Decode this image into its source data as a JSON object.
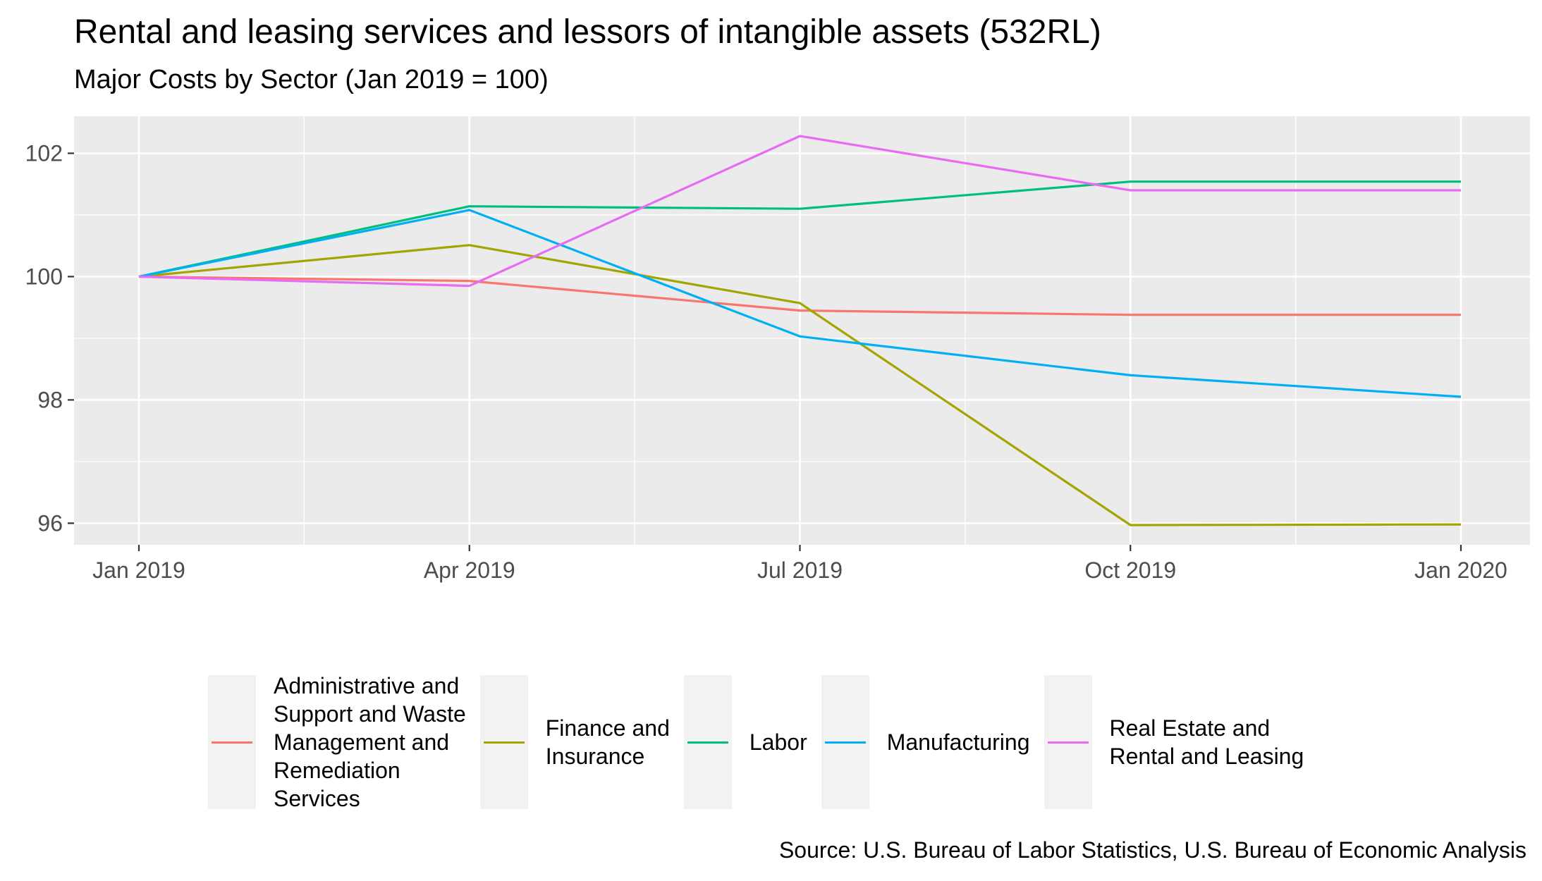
{
  "chart_data": {
    "type": "line",
    "title": "Rental and leasing services and lessors of intangible assets (532RL)",
    "subtitle": "Major Costs by Sector (Jan 2019 = 100)",
    "caption": "Source: U.S. Bureau of Labor Statistics, U.S. Bureau of Economic Analysis",
    "xlabel": "",
    "ylabel": "",
    "x": [
      "Jan 2019",
      "Apr 2019",
      "Jul 2019",
      "Oct 2019",
      "Jan 2020"
    ],
    "x_ticks": [
      "Jan 2019",
      "Apr 2019",
      "Jul 2019",
      "Oct 2019",
      "Jan 2020"
    ],
    "y_ticks": [
      96,
      98,
      100,
      102
    ],
    "ylim": [
      95.65,
      102.6
    ],
    "grid": true,
    "legend_position": "bottom",
    "series": [
      {
        "name": "Administrative and Support and Waste Management and Remediation Services",
        "label_lines": [
          "Administrative and",
          "Support and Waste",
          "Management and",
          "Remediation",
          "Services"
        ],
        "color": "#F8766D",
        "values": [
          100.0,
          99.93,
          99.45,
          99.38,
          99.38
        ]
      },
      {
        "name": "Finance and Insurance",
        "label_lines": [
          "Finance and",
          "Insurance"
        ],
        "color": "#A3A500",
        "values": [
          100.0,
          100.51,
          99.57,
          95.97,
          95.98
        ]
      },
      {
        "name": "Labor",
        "label_lines": [
          "Labor"
        ],
        "color": "#00BF7D",
        "values": [
          100.0,
          101.14,
          101.1,
          101.54,
          101.54
        ]
      },
      {
        "name": "Manufacturing",
        "label_lines": [
          "Manufacturing"
        ],
        "color": "#00B0F6",
        "values": [
          100.0,
          101.08,
          99.03,
          98.4,
          98.05
        ]
      },
      {
        "name": "Real Estate and Rental and Leasing",
        "label_lines": [
          "Real Estate and",
          "Rental and Leasing"
        ],
        "color": "#E76BF3",
        "values": [
          100.0,
          99.85,
          102.28,
          101.4,
          101.4
        ]
      }
    ]
  }
}
